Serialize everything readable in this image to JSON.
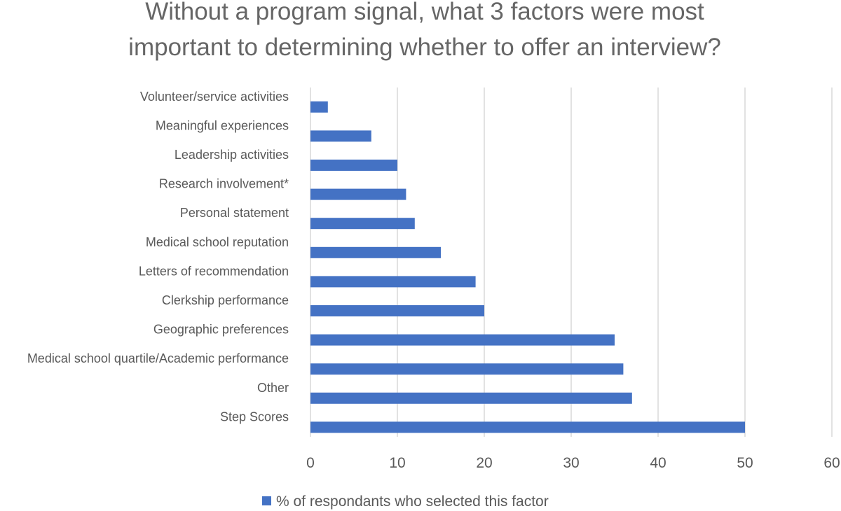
{
  "chart_data": {
    "type": "bar",
    "orientation": "horizontal",
    "title_lines": [
      "Without a program signal, what 3 factors were most",
      "important to determining whether to offer an interview?"
    ],
    "categories": [
      "Volunteer/service activities",
      "Meaningful experiences",
      "Leadership activities",
      "Research involvement*",
      "Personal statement",
      "Medical school reputation",
      "Letters of recommendation",
      "Clerkship performance",
      "Geographic preferences",
      "Medical school quartile/Academic performance",
      "Other",
      "Step Scores"
    ],
    "series": [
      {
        "name": "% of respondants who selected this factor",
        "values": [
          2,
          7,
          10,
          11,
          12,
          15,
          19,
          20,
          35,
          36,
          37,
          50
        ],
        "color": "#4472c4"
      }
    ],
    "xlim": [
      0,
      60
    ],
    "xticks": [
      0,
      10,
      20,
      30,
      40,
      50,
      60
    ],
    "grid": true,
    "legend_position": "bottom",
    "xlabel": "",
    "ylabel": ""
  }
}
